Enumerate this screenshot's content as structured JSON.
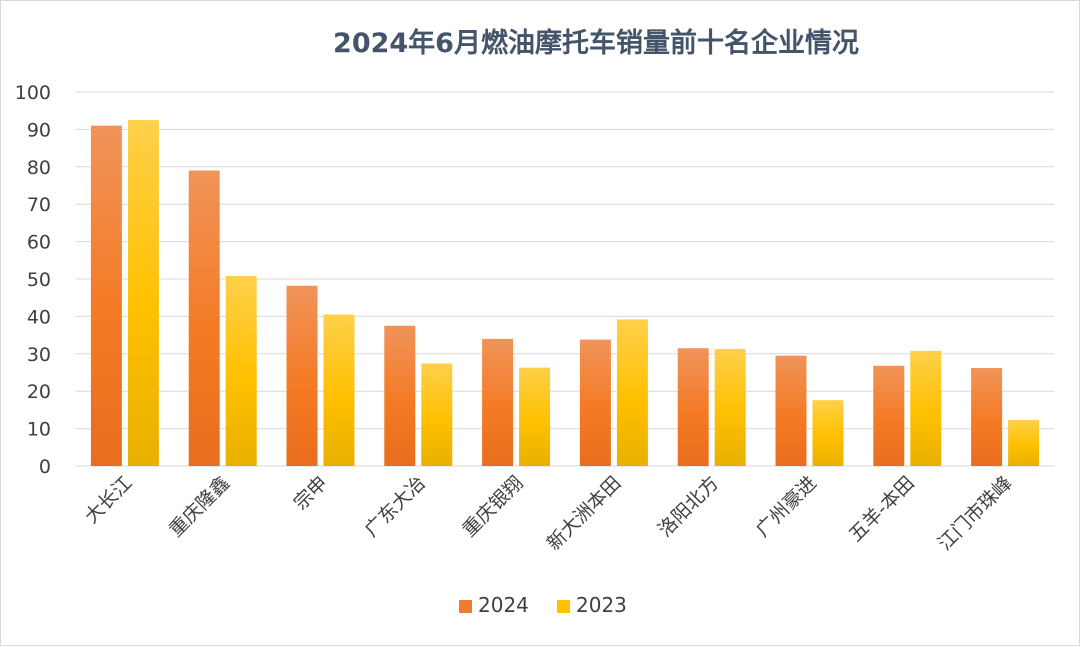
{
  "chart_data": {
    "type": "bar",
    "title": "2024年6月燃油摩托车销量前十名企业情况",
    "xlabel": "",
    "ylabel": "",
    "ylim": [
      0,
      100
    ],
    "yticks": [
      "0",
      "10",
      "20",
      "30",
      "40",
      "50",
      "60",
      "70",
      "80",
      "90",
      "100"
    ],
    "grid": true,
    "legend_position": "bottom",
    "categories": [
      "大长江",
      "重庆隆鑫",
      "宗申",
      "广东大冶",
      "重庆银翔",
      "新大洲本田",
      "洛阳北方",
      "广州豪进",
      "五羊-本田",
      "江门市珠峰"
    ],
    "series": [
      {
        "name": "2024",
        "color": "#ed7d31",
        "values": [
          91.0,
          79.0,
          48.2,
          37.5,
          34.0,
          33.8,
          31.5,
          29.5,
          26.8,
          26.2
        ]
      },
      {
        "name": "2023",
        "color": "#ffc000",
        "values": [
          92.5,
          50.8,
          40.5,
          27.4,
          26.3,
          39.2,
          31.3,
          17.6,
          30.8,
          12.3
        ]
      }
    ]
  }
}
